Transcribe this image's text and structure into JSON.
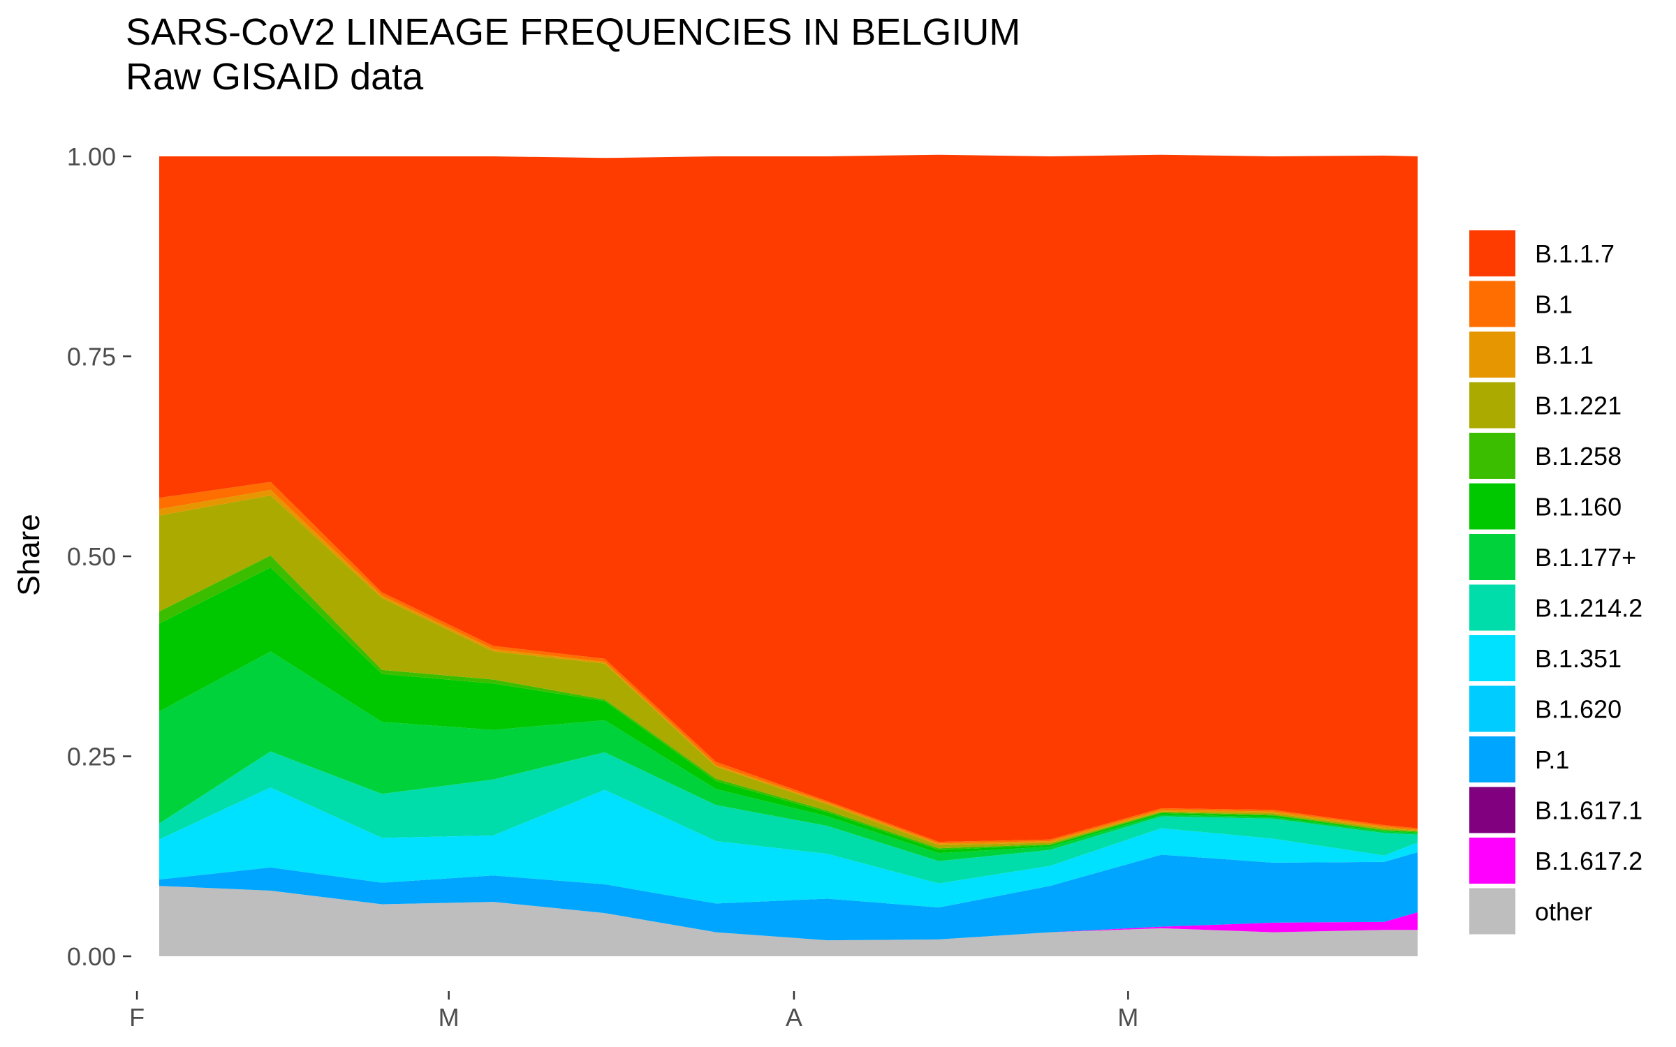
{
  "chart_data": {
    "type": "area",
    "stacked": true,
    "title": "SARS-CoV2 LINEAGE FREQUENCIES IN BELGIUM",
    "subtitle": "Raw GISAID data",
    "xlabel": "",
    "ylabel": "Share",
    "ylim": [
      0,
      1
    ],
    "y_ticks": [
      "0.00",
      "0.25",
      "0.50",
      "0.75",
      "1.00"
    ],
    "x_ticks": [
      "F",
      "M",
      "A",
      "M"
    ],
    "x_tick_dates": [
      "2021-02-01",
      "2021-03-01",
      "2021-04-01",
      "2021-05-01"
    ],
    "x_range": [
      "2021-02-03",
      "2021-05-27"
    ],
    "x": [
      "2021-02-03",
      "2021-02-13",
      "2021-02-23",
      "2021-03-05",
      "2021-03-15",
      "2021-03-25",
      "2021-04-04",
      "2021-04-14",
      "2021-04-24",
      "2021-05-04",
      "2021-05-14",
      "2021-05-24",
      "2021-05-27"
    ],
    "grid": false,
    "legend_position": "right",
    "stack_order_bottom_to_top": [
      "other",
      "B.1.617.2",
      "B.1.617.1",
      "P.1",
      "B.1.620",
      "B.1.351",
      "B.1.214.2",
      "B.1.177+",
      "B.1.160",
      "B.1.258",
      "B.1.221",
      "B.1.1",
      "B.1",
      "B.1.1.7"
    ],
    "series": [
      {
        "name": "other",
        "color": "#BEBEBE",
        "values": [
          0.088,
          0.082,
          0.065,
          0.068,
          0.054,
          0.03,
          0.02,
          0.021,
          0.03,
          0.035,
          0.03,
          0.033,
          0.033
        ]
      },
      {
        "name": "B.1.617.2",
        "color": "#FF00FF",
        "values": [
          0,
          0,
          0,
          0,
          0,
          0,
          0,
          0,
          0,
          0.002,
          0.012,
          0.01,
          0.022
        ]
      },
      {
        "name": "B.1.617.1",
        "color": "#800080",
        "values": [
          0,
          0,
          0,
          0,
          0,
          0,
          0,
          0,
          0,
          0,
          0,
          0,
          0
        ]
      },
      {
        "name": "P.1",
        "color": "#00A5FF",
        "values": [
          0.008,
          0.029,
          0.027,
          0.033,
          0.036,
          0.036,
          0.052,
          0.04,
          0.058,
          0.09,
          0.075,
          0.075,
          0.075
        ]
      },
      {
        "name": "B.1.620",
        "color": "#00CCFF",
        "values": [
          0,
          0,
          0,
          0,
          0,
          0,
          0,
          0,
          0,
          0,
          0,
          0,
          0
        ]
      },
      {
        "name": "B.1.351",
        "color": "#00E0FF",
        "values": [
          0.05,
          0.1,
          0.056,
          0.05,
          0.118,
          0.078,
          0.056,
          0.03,
          0.025,
          0.033,
          0.03,
          0.008,
          0.012
        ]
      },
      {
        "name": "B.1.214.2",
        "color": "#00DDAA",
        "values": [
          0.02,
          0.045,
          0.055,
          0.07,
          0.047,
          0.045,
          0.035,
          0.028,
          0.02,
          0.015,
          0.025,
          0.028,
          0.01
        ]
      },
      {
        "name": "B.1.177+",
        "color": "#00D23C",
        "values": [
          0.14,
          0.125,
          0.09,
          0.062,
          0.04,
          0.02,
          0.012,
          0.01,
          0.004,
          0.002,
          0.002,
          0.002,
          0.002
        ]
      },
      {
        "name": "B.1.160",
        "color": "#00C800",
        "values": [
          0.11,
          0.105,
          0.06,
          0.058,
          0.024,
          0.01,
          0.005,
          0.004,
          0.002,
          0.002,
          0.002,
          0.001,
          0.001
        ]
      },
      {
        "name": "B.1.258",
        "color": "#3CBE00",
        "values": [
          0.015,
          0.015,
          0.005,
          0.005,
          0.002,
          0.003,
          0.002,
          0.002,
          0.001,
          0.001,
          0.001,
          0.001,
          0.001
        ]
      },
      {
        "name": "B.1.221",
        "color": "#AAAA00",
        "values": [
          0.12,
          0.075,
          0.09,
          0.035,
          0.045,
          0.015,
          0.008,
          0.004,
          0.002,
          0.001,
          0.002,
          0.002,
          0.001
        ]
      },
      {
        "name": "B.1.1",
        "color": "#E69600",
        "values": [
          0.008,
          0.007,
          0.003,
          0.003,
          0.002,
          0.002,
          0.002,
          0.002,
          0.002,
          0.002,
          0.002,
          0.002,
          0.001
        ]
      },
      {
        "name": "B.1",
        "color": "#FF6E00",
        "values": [
          0.014,
          0.01,
          0.004,
          0.004,
          0.004,
          0.004,
          0.002,
          0.002,
          0.002,
          0.002,
          0.002,
          0.002,
          0.002
        ]
      },
      {
        "name": "B.1.1.7",
        "color": "#FF3C00",
        "values": [
          0.427,
          0.407,
          0.545,
          0.612,
          0.626,
          0.757,
          0.806,
          0.859,
          0.854,
          0.817,
          0.817,
          0.837,
          0.84
        ]
      }
    ],
    "legend_order": [
      "B.1.1.7",
      "B.1",
      "B.1.1",
      "B.1.221",
      "B.1.258",
      "B.1.160",
      "B.1.177+",
      "B.1.214.2",
      "B.1.351",
      "B.1.620",
      "P.1",
      "B.1.617.1",
      "B.1.617.2",
      "other"
    ]
  }
}
